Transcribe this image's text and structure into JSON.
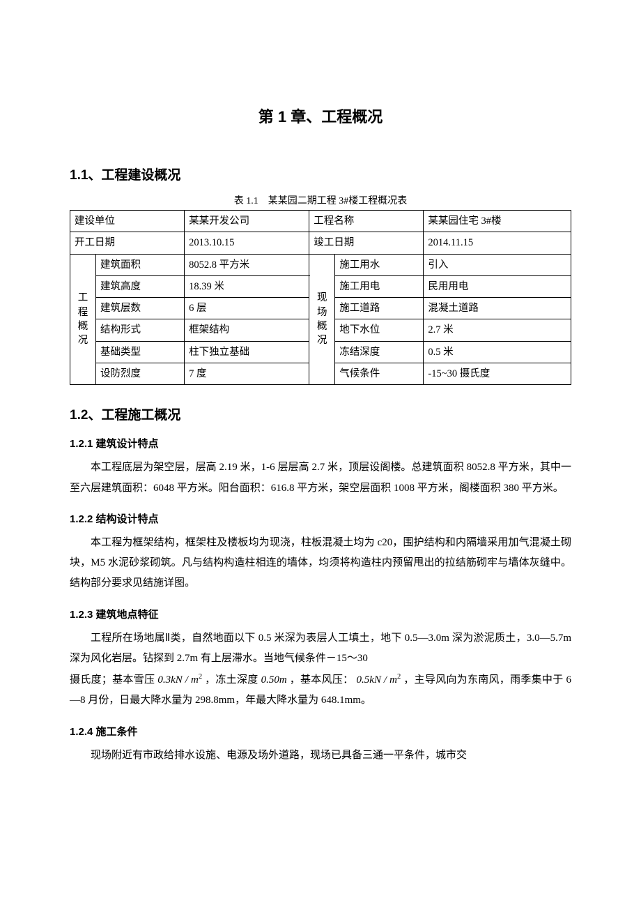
{
  "chapter_title": "第 1 章、工程概况",
  "section_1_1": {
    "heading": "1.1、工程建设概况",
    "table_caption": "表 1.1 某某园二期工程 3#楼工程概况表",
    "table": {
      "r1": {
        "c1": "建设单位",
        "c2": "某某开发公司",
        "c3": "工程名称",
        "c4": "某某园住宅 3#楼"
      },
      "r2": {
        "c1": "开工日期",
        "c2": "2013.10.15",
        "c3": "竣工日期",
        "c4": "2014.11.15"
      },
      "left_group_label": "工程概况",
      "right_group_label": "现场概况",
      "rows_left": [
        {
          "k": "建筑面积",
          "v": "8052.8 平方米"
        },
        {
          "k": "建筑高度",
          "v": "18.39 米"
        },
        {
          "k": "建筑层数",
          "v": "6 层"
        },
        {
          "k": "结构形式",
          "v": "框架结构"
        },
        {
          "k": "基础类型",
          "v": "柱下独立基础"
        },
        {
          "k": "设防烈度",
          "v": "7 度"
        }
      ],
      "rows_right": [
        {
          "k": "施工用水",
          "v": "引入"
        },
        {
          "k": "施工用电",
          "v": "民用用电"
        },
        {
          "k": "施工道路",
          "v": "混凝土道路"
        },
        {
          "k": "地下水位",
          "v": "2.7 米"
        },
        {
          "k": "冻结深度",
          "v": "0.5 米"
        },
        {
          "k": "气候条件",
          "v": "-15~30 摄氏度"
        }
      ]
    }
  },
  "section_1_2": {
    "heading": "1.2、工程施工概况",
    "s1": {
      "heading": "1.2.1 建筑设计特点",
      "para": "本工程底层为架空层，层高 2.19 米，1-6 层层高 2.7 米，顶层设阁楼。总建筑面积 8052.8 平方米，其中一至六层建筑面积：6048 平方米。阳台面积：616.8 平方米，架空层面积 1008 平方米，阁楼面积 380 平方米。"
    },
    "s2": {
      "heading": "1.2.2 结构设计特点",
      "para": "本工程为框架结构，框架柱及楼板均为现浇，柱板混凝土均为 c20，围护结构和内隔墙采用加气混凝土砌块，M5 水泥砂浆砌筑。凡与结构构造柱相连的墙体，均须将构造柱内预留甩出的拉结筋砌牢与墙体灰缝中。结构部分要求见结施详图。"
    },
    "s3": {
      "heading": "1.2.3 建筑地点特征",
      "para1_a": "工程所在场地属Ⅱ类，自然地面以下 0.5 米深为表层人工填土，地下 0.5—3.0m 深为淤泥质土，3.0—5.7m 深为风化岩层。钻探到 2.7m 有上层滞水。当地气候条件－15～30",
      "para1_b_pref": "摄氏度；基本雪压",
      "snow_load": "0.3kN / m",
      "para1_c": "，冻土深度",
      "frost_depth": "0.50m",
      "para1_d": "，基本风压：",
      "wind_load": "0.5kN / m",
      "para1_e": "，主导风向为东南风，雨季集中于 6—8 月份，日最大降水量为 298.8mm，年最大降水量为 648.1mm。"
    },
    "s4": {
      "heading": "1.2.4 施工条件",
      "para": "现场附近有市政给排水设施、电源及场外道路，现场已具备三通一平条件，城市交"
    }
  },
  "style": {
    "text_color": "#000000",
    "background": "#ffffff",
    "border_color": "#000000",
    "body_font_size_pt": 11,
    "heading_font_size_pt": 14,
    "chapter_font_size_pt": 16
  }
}
